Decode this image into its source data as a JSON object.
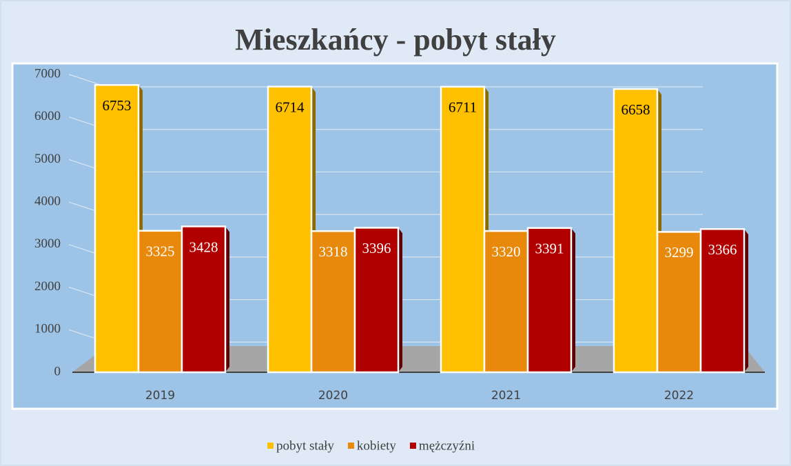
{
  "chart_data": {
    "type": "bar",
    "title": "Mieszkańcy - pobyt stały",
    "categories": [
      "2019",
      "2020",
      "2021",
      "2022"
    ],
    "series": [
      {
        "name": "pobyt stały",
        "color": "#ffc000",
        "values": [
          6753,
          6714,
          6711,
          6658
        ]
      },
      {
        "name": "kobiety",
        "color": "#e8890c",
        "values": [
          3325,
          3318,
          3320,
          3299
        ]
      },
      {
        "name": "mężczyźni",
        "color": "#b00000",
        "values": [
          3428,
          3396,
          3391,
          3366
        ]
      }
    ],
    "ylim": [
      0,
      7000
    ],
    "yticks": [
      0,
      1000,
      2000,
      3000,
      4000,
      5000,
      6000,
      7000
    ],
    "grid": true
  }
}
